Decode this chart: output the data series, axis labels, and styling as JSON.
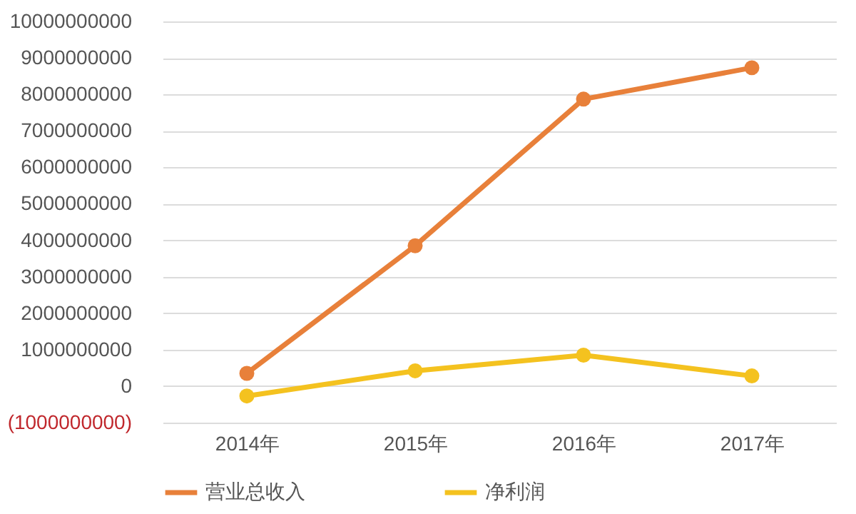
{
  "chart_data": {
    "type": "line",
    "categories": [
      "2014年",
      "2015年",
      "2016年",
      "2017年"
    ],
    "series": [
      {
        "name": "营业总收入",
        "color": "#e8803a",
        "values": [
          350000000,
          3850000000,
          7870000000,
          8730000000
        ]
      },
      {
        "name": "净利润",
        "color": "#f4c21f",
        "values": [
          -270000000,
          420000000,
          850000000,
          280000000
        ]
      }
    ],
    "ylim": [
      -1000000000,
      10000000000
    ],
    "yticks": [
      {
        "value": -1000000000,
        "label": "(1000000000)"
      },
      0,
      1000000000,
      2000000000,
      3000000000,
      4000000000,
      5000000000,
      6000000000,
      7000000000,
      8000000000,
      9000000000,
      10000000000
    ],
    "grid": "y",
    "legend": "bottom",
    "marker": "circle",
    "line_style": "solid"
  }
}
